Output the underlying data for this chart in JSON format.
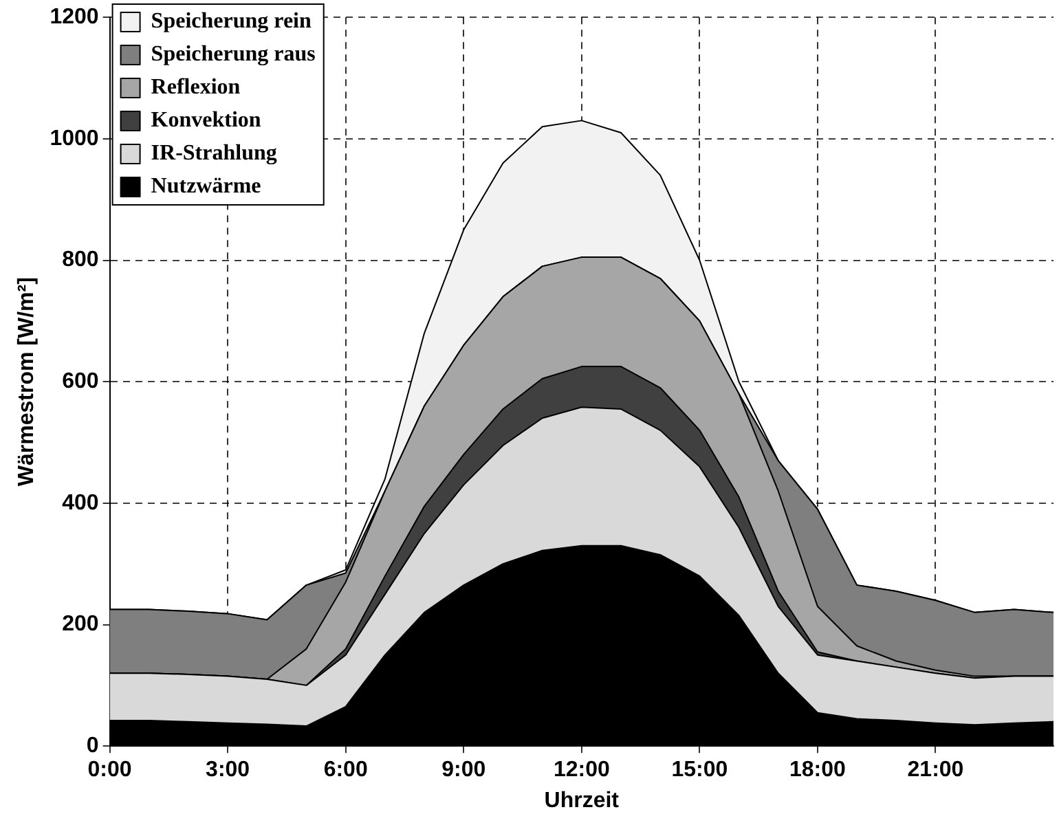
{
  "chart_data": {
    "type": "area",
    "stacked": true,
    "xlabel": "Uhrzeit",
    "ylabel": "Wärmestrom [W/m²]",
    "x": [
      0,
      1,
      2,
      3,
      4,
      5,
      6,
      7,
      8,
      9,
      10,
      11,
      12,
      13,
      14,
      15,
      16,
      17,
      18,
      19,
      20,
      21,
      22,
      23,
      24
    ],
    "xlim": [
      0,
      24
    ],
    "xticks": [
      {
        "value": 0,
        "label": "0:00"
      },
      {
        "value": 3,
        "label": "3:00"
      },
      {
        "value": 6,
        "label": "6:00"
      },
      {
        "value": 9,
        "label": "9:00"
      },
      {
        "value": 12,
        "label": "12:00"
      },
      {
        "value": 15,
        "label": "15:00"
      },
      {
        "value": 18,
        "label": "18:00"
      },
      {
        "value": 21,
        "label": "21:00"
      }
    ],
    "ylim": [
      0,
      1200
    ],
    "yticks": [
      0,
      200,
      400,
      600,
      800,
      1000,
      1200
    ],
    "grid": true,
    "legend": "top left",
    "series": [
      {
        "name": "Nutzwärme",
        "color": "#000000",
        "values": [
          42,
          42,
          40,
          38,
          36,
          33,
          65,
          150,
          220,
          265,
          300,
          322,
          330,
          330,
          315,
          280,
          215,
          120,
          55,
          45,
          42,
          38,
          35,
          38,
          40
        ]
      },
      {
        "name": "IR-Strahlung",
        "color": "#d9d9d9",
        "values": [
          78,
          78,
          78,
          77,
          74,
          67,
          85,
          100,
          130,
          165,
          195,
          218,
          228,
          225,
          205,
          180,
          145,
          110,
          95,
          95,
          88,
          82,
          77,
          77,
          75
        ]
      },
      {
        "name": "Konvektion",
        "color": "#404040",
        "values": [
          0,
          0,
          0,
          0,
          0,
          0,
          10,
          30,
          45,
          50,
          60,
          65,
          67,
          70,
          70,
          60,
          50,
          25,
          5,
          0,
          0,
          0,
          0,
          0,
          0
        ]
      },
      {
        "name": "Reflexion",
        "color": "#a6a6a6",
        "values": [
          0,
          0,
          0,
          0,
          0,
          60,
          110,
          140,
          165,
          180,
          185,
          185,
          180,
          180,
          180,
          180,
          170,
          165,
          75,
          25,
          10,
          5,
          3,
          0,
          0
        ]
      },
      {
        "name": "Speicherung raus",
        "color": "#7f7f7f",
        "values": [
          105,
          105,
          104,
          103,
          98,
          105,
          15,
          0,
          0,
          0,
          0,
          0,
          0,
          0,
          0,
          0,
          0,
          50,
          160,
          100,
          115,
          115,
          105,
          110,
          105
        ]
      },
      {
        "name": "Speicherung rein",
        "color": "#f2f2f2",
        "values": [
          0,
          0,
          0,
          0,
          0,
          0,
          5,
          20,
          120,
          190,
          220,
          230,
          225,
          205,
          170,
          100,
          20,
          0,
          0,
          0,
          0,
          0,
          0,
          0,
          0
        ]
      }
    ]
  }
}
